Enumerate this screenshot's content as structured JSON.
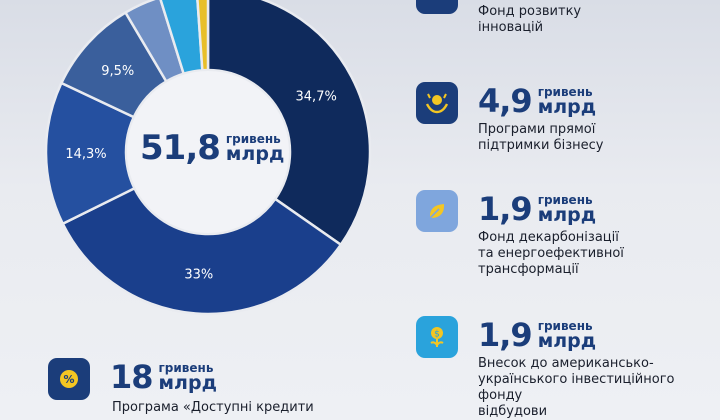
{
  "chart_data": {
    "type": "pie",
    "title": "",
    "values": [
      34.7,
      33,
      14.3,
      9.5,
      3.7,
      3.7,
      1.1
    ],
    "labels": [
      "34,7%",
      "33%",
      "14,3%",
      "9,5%",
      "",
      "",
      ""
    ],
    "colors": [
      "#0f2a5c",
      "#1a3f8c",
      "#2550a0",
      "#3a5f9c",
      "#6f8fc4",
      "#2aa3dc",
      "#e8bf2a"
    ]
  },
  "center": {
    "value": "51,8",
    "unit_small": "гривень",
    "unit_big": "млрд"
  },
  "items": [
    {
      "label": "Фонд розвитку\nінновацій"
    },
    {
      "amount": "4,9",
      "unit_small": "гривень",
      "unit_big": "млрд",
      "label": "Програми прямої\nпідтримки бізнесу",
      "icon": "hands-coin-icon"
    },
    {
      "amount": "1,9",
      "unit_small": "гривень",
      "unit_big": "млрд",
      "label": "Фонд декарбонізації\nта енергоефективної\nтрансформації",
      "icon": "leaf-icon"
    },
    {
      "amount": "1,9",
      "unit_small": "гривень",
      "unit_big": "млрд",
      "label": "Внесок до американсько-\nукраїнського інвестиційного фонду\nвідбудови",
      "icon": "flower-coin-icon"
    },
    {
      "amount": "18",
      "unit_small": "гривень",
      "unit_big": "млрд",
      "label": "Програма «Доступні кредити",
      "icon": "percent-icon"
    }
  ]
}
